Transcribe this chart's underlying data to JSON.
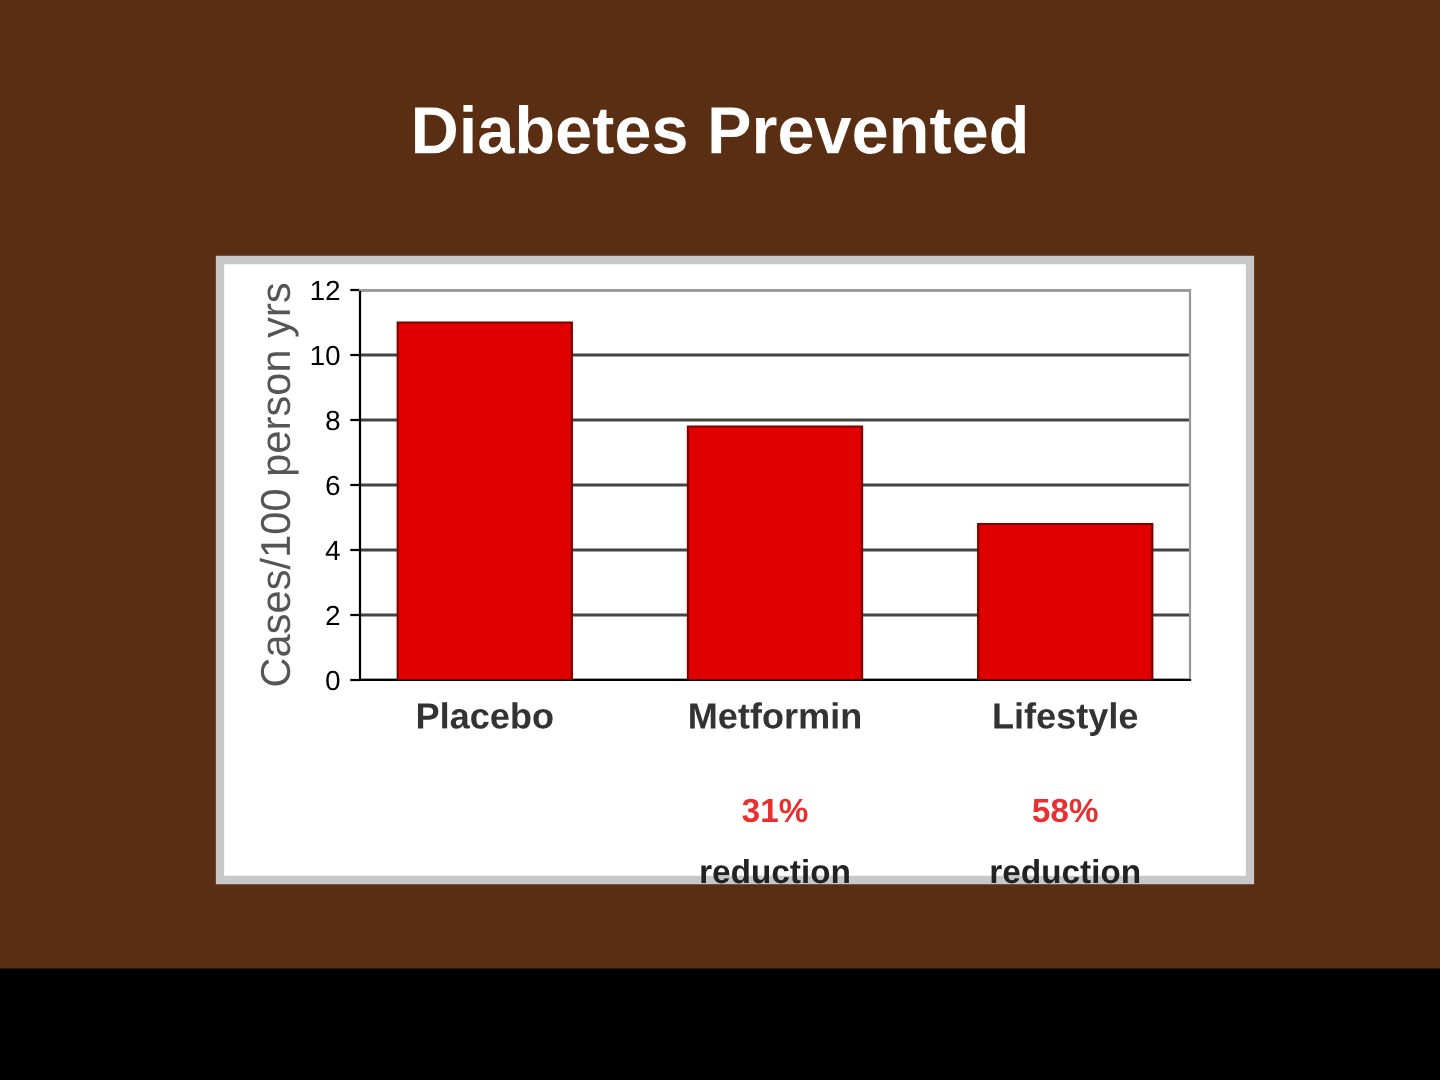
{
  "chart_data": {
    "type": "bar",
    "title": "Diabetes Prevented",
    "ylabel": "Cases/100 person yrs",
    "categories": [
      "Placebo",
      "Metformin",
      "Lifestyle"
    ],
    "values": [
      11.0,
      7.8,
      4.8
    ],
    "color": "#e00000",
    "ylim": [
      0,
      12
    ],
    "yticks": [
      0,
      2,
      4,
      6,
      8,
      10,
      12
    ],
    "grid": "y",
    "annotations": [
      "31%\nreduction",
      "58%\nreduction"
    ]
  }
}
